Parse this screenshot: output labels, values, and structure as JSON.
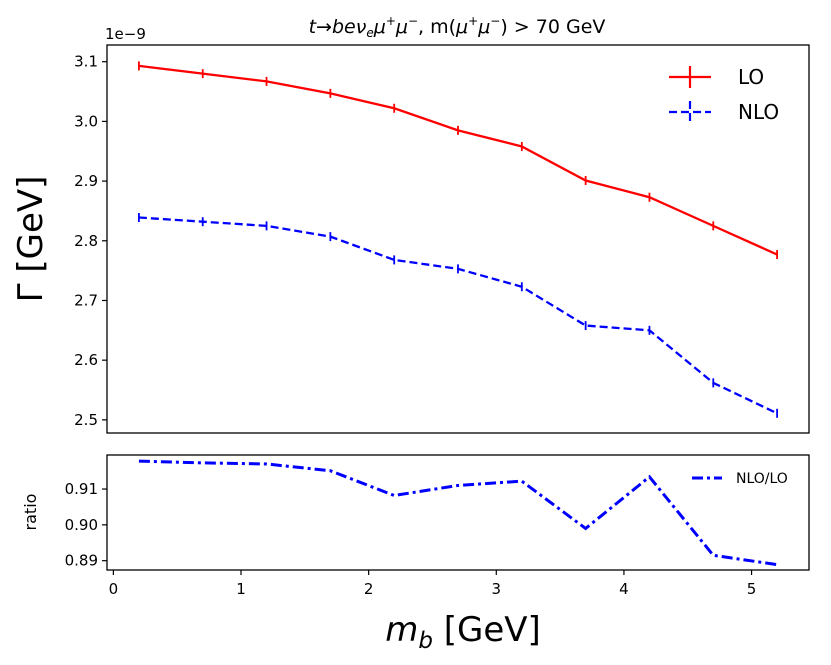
{
  "chart_data": [
    {
      "type": "line",
      "title": "t → beν_e μ⁺μ⁻ , m(μ⁺μ⁻) > 70 GeV",
      "title_parts": {
        "a": "t",
        "arrow": "→",
        "b": "be",
        "nu": "ν",
        "nu_sub": "e",
        "mu1": "μ",
        "plus1": "+",
        "mu2": "μ",
        "minus1": "−",
        "mid": ", m(",
        "mu3": "μ",
        "plus2": "+",
        "mu4": "μ",
        "minus2": "−",
        "end": ") > 70 GeV"
      },
      "ylabel": "Γ [GeV]",
      "offset_text": "1e−9",
      "xlim": [
        -0.05,
        5.45
      ],
      "ylim": [
        2.478,
        3.128
      ],
      "yticks": [
        2.5,
        2.6,
        2.7,
        2.8,
        2.9,
        3.0,
        3.1
      ],
      "ytick_labels": [
        "2.5",
        "2.6",
        "2.7",
        "2.8",
        "2.9",
        "3.0",
        "3.1"
      ],
      "legend_position": "top-right",
      "x": [
        0.2,
        0.7,
        1.2,
        1.7,
        2.2,
        2.7,
        3.2,
        3.7,
        4.2,
        4.7,
        5.2
      ],
      "series": [
        {
          "name": "LO",
          "color": "#ff0000",
          "style": "solid",
          "values": [
            3.093,
            3.08,
            3.067,
            3.047,
            3.022,
            2.985,
            2.958,
            2.901,
            2.873,
            2.825,
            2.777
          ]
        },
        {
          "name": "NLO",
          "color": "#0000ff",
          "style": "dashed",
          "values": [
            2.839,
            2.832,
            2.825,
            2.807,
            2.768,
            2.753,
            2.723,
            2.658,
            2.65,
            2.562,
            2.511
          ]
        }
      ]
    },
    {
      "type": "line",
      "ylabel": "ratio",
      "xlabel": "m_b [GeV]",
      "xlabel_parts": {
        "m": "m",
        "sub": "b",
        "rest": " [GeV]"
      },
      "xlim": [
        -0.05,
        5.45
      ],
      "ylim": [
        0.8874,
        0.9195
      ],
      "xticks": [
        0,
        1,
        2,
        3,
        4,
        5
      ],
      "xtick_labels": [
        "0",
        "1",
        "2",
        "3",
        "4",
        "5"
      ],
      "yticks": [
        0.89,
        0.9,
        0.91
      ],
      "ytick_labels": [
        "0.89",
        "0.90",
        "0.91"
      ],
      "legend_position": "top-right",
      "x": [
        0.2,
        0.7,
        1.2,
        1.7,
        2.2,
        2.7,
        3.2,
        3.7,
        4.2,
        4.7,
        5.2
      ],
      "series": [
        {
          "name": "NLO/LO",
          "color": "#0000ff",
          "style": "dashdot",
          "values": [
            0.9178,
            0.9173,
            0.917,
            0.9151,
            0.9082,
            0.911,
            0.9122,
            0.899,
            0.9134,
            0.8915,
            0.8889
          ]
        }
      ]
    }
  ]
}
